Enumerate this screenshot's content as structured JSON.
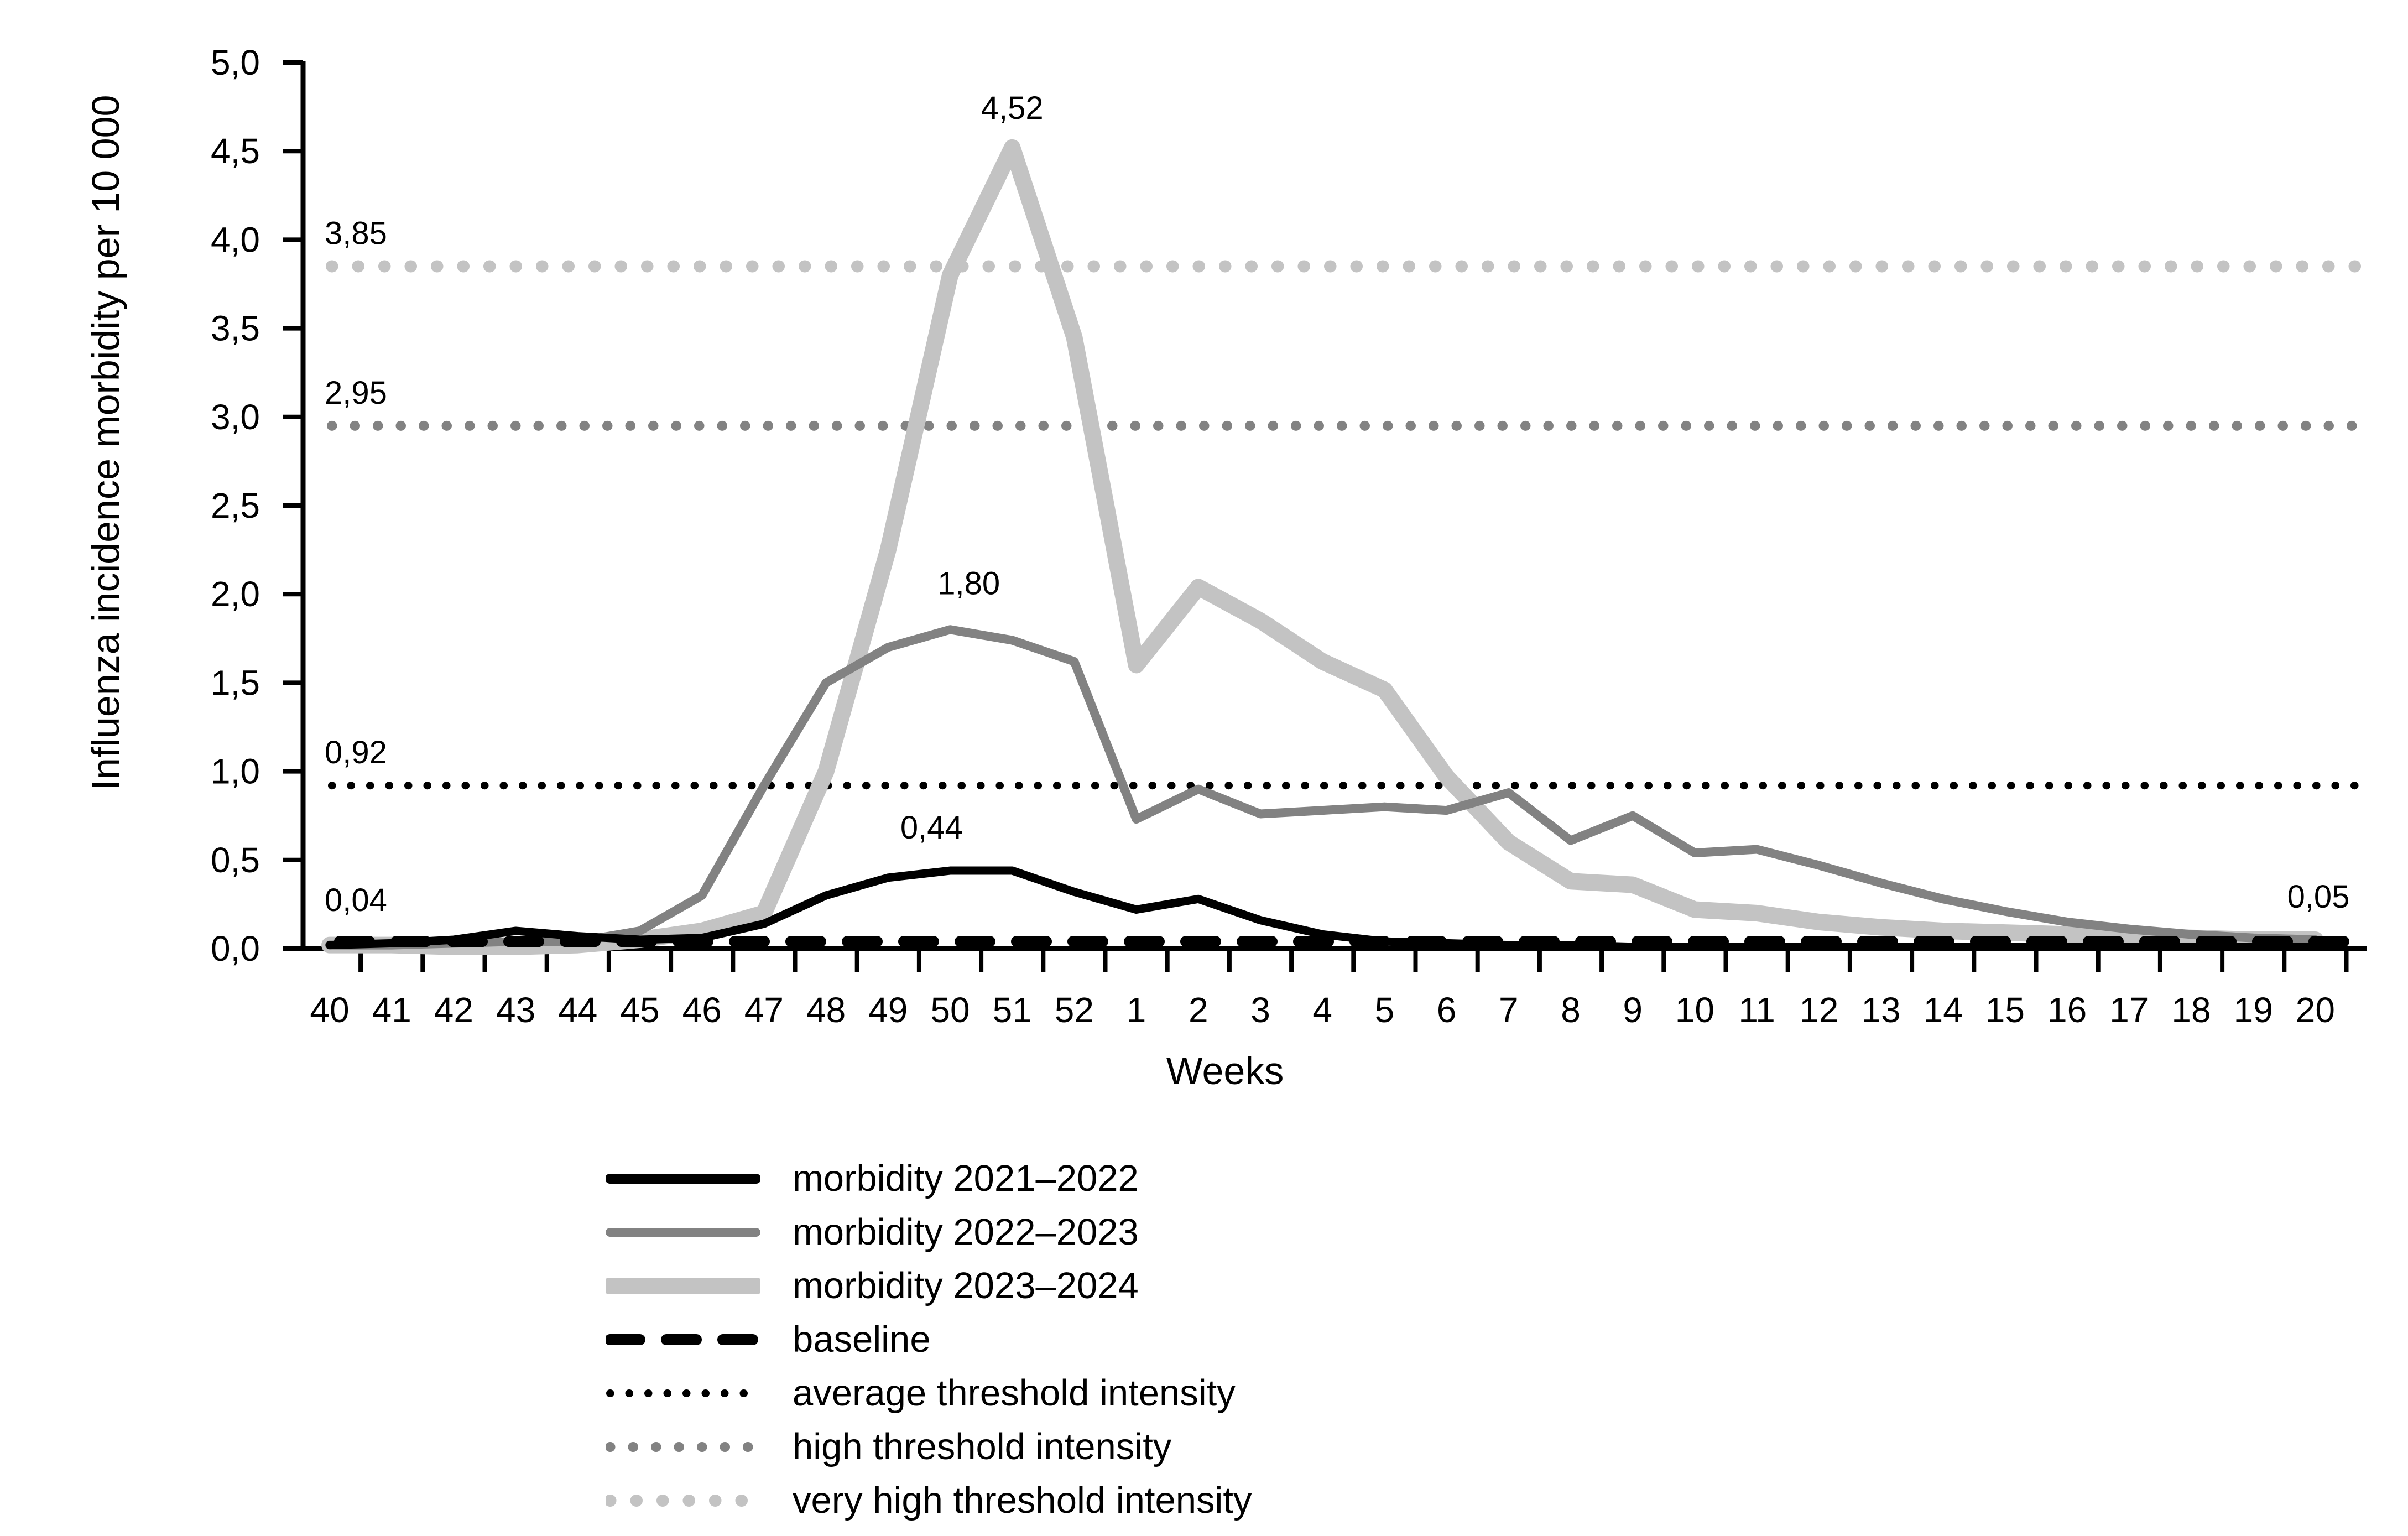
{
  "chart_data": {
    "type": "line",
    "xlabel": "Weeks",
    "ylabel": "Influenza incidence morbidity per 10 000",
    "ylim": [
      0,
      5
    ],
    "grid": false,
    "x_categories": [
      "40",
      "41",
      "42",
      "43",
      "44",
      "45",
      "46",
      "47",
      "48",
      "49",
      "50",
      "51",
      "52",
      "1",
      "2",
      "3",
      "4",
      "5",
      "6",
      "7",
      "8",
      "9",
      "10",
      "11",
      "12",
      "13",
      "14",
      "15",
      "16",
      "17",
      "18",
      "19",
      "20"
    ],
    "y_ticks": [
      {
        "value": 5.0,
        "label": "5,0"
      },
      {
        "value": 4.5,
        "label": "4,5"
      },
      {
        "value": 4.0,
        "label": "4,0"
      },
      {
        "value": 3.5,
        "label": "3,5"
      },
      {
        "value": 3.0,
        "label": "3,0"
      },
      {
        "value": 2.5,
        "label": "2,5"
      },
      {
        "value": 2.0,
        "label": "2,0"
      },
      {
        "value": 1.5,
        "label": "1,5"
      },
      {
        "value": 1.0,
        "label": "1,0"
      },
      {
        "value": 0.5,
        "label": "0,5"
      },
      {
        "value": 0.0,
        "label": "0,0"
      }
    ],
    "series": [
      {
        "name": "morbidity 2023–2024",
        "color": "#c3c3c3",
        "width": 30,
        "values": [
          0.02,
          0.02,
          0.01,
          0.01,
          0.02,
          0.05,
          0.1,
          0.2,
          1.0,
          2.25,
          3.8,
          4.52,
          3.45,
          1.6,
          2.04,
          1.85,
          1.62,
          1.46,
          0.97,
          0.6,
          0.38,
          0.36,
          0.22,
          0.2,
          0.15,
          0.12,
          0.1,
          0.09,
          0.08,
          0.07,
          0.06,
          0.05,
          0.05
        ],
        "peak_label": "4,52"
      },
      {
        "name": "morbidity 2022–2023",
        "color": "#828282",
        "width": 16,
        "values": [
          0.02,
          0.02,
          0.03,
          0.04,
          0.04,
          0.1,
          0.3,
          0.92,
          1.5,
          1.7,
          1.8,
          1.74,
          1.62,
          0.73,
          0.9,
          0.76,
          0.78,
          0.8,
          0.78,
          0.88,
          0.61,
          0.75,
          0.54,
          0.56,
          0.47,
          0.37,
          0.28,
          0.21,
          0.15,
          0.11,
          0.08,
          0.06,
          0.05
        ],
        "peak_label": "1,80"
      },
      {
        "name": "morbidity 2021–2022",
        "color": "#000000",
        "width": 15,
        "values": [
          0.02,
          0.03,
          0.05,
          0.1,
          0.07,
          0.05,
          0.06,
          0.14,
          0.3,
          0.4,
          0.44,
          0.44,
          0.32,
          0.22,
          0.28,
          0.16,
          0.08,
          0.04,
          0.03,
          0.02,
          0.02,
          0.01,
          0.01,
          0.01,
          0.01,
          0.01,
          0.01,
          0.01,
          0.01,
          0.01,
          0.01,
          0.01,
          0.01
        ],
        "peak_label": "0,44"
      }
    ],
    "baseline": {
      "name": "baseline",
      "value": 0.04,
      "color": "#000000",
      "width": 20,
      "dash": "54 48",
      "label": "0,04"
    },
    "thresholds": [
      {
        "name": "average threshold intensity",
        "value": 0.92,
        "color": "#000000",
        "width": 14,
        "dash": "0.5 34",
        "label": "0,92"
      },
      {
        "name": "high threshold intensity",
        "value": 2.95,
        "color": "#828282",
        "width": 18,
        "dash": "0.5 41",
        "label": "2,95"
      },
      {
        "name": "very high threshold intensity",
        "value": 3.85,
        "color": "#c3c3c3",
        "width": 22,
        "dash": "0.5 47",
        "label": "3,85"
      }
    ],
    "annotations": [
      {
        "label": "3,85",
        "x_week": -0.08,
        "value": 3.85,
        "dy": -40,
        "align": "start"
      },
      {
        "label": "2,95",
        "x_week": -0.08,
        "value": 2.95,
        "dy": -40,
        "align": "start"
      },
      {
        "label": "0,92",
        "x_week": -0.08,
        "value": 0.92,
        "dy": -40,
        "align": "start"
      },
      {
        "label": "0,04",
        "x_week": -0.08,
        "value": 0.04,
        "dy": -55,
        "align": "start"
      },
      {
        "label": "4,52",
        "x_week": 11.0,
        "value": 4.52,
        "dy": -52,
        "align": "middle"
      },
      {
        "label": "1,80",
        "x_week": 10.3,
        "value": 1.8,
        "dy": -64,
        "align": "middle"
      },
      {
        "label": "0,44",
        "x_week": 9.7,
        "value": 0.44,
        "dy": -58,
        "align": "middle"
      },
      {
        "label": "0,05",
        "x_week": 32.05,
        "value": 0.05,
        "dy": -58,
        "align": "middle"
      }
    ]
  },
  "legend": {
    "items": [
      {
        "label": "morbidity 2021–2022",
        "color": "#000000",
        "width": 18,
        "dash": ""
      },
      {
        "label": "morbidity 2022–2023",
        "color": "#828282",
        "width": 16,
        "dash": ""
      },
      {
        "label": "morbidity 2023–2024",
        "color": "#c3c3c3",
        "width": 30,
        "dash": ""
      },
      {
        "label": "baseline",
        "color": "#000000",
        "width": 20,
        "dash": "54 48"
      },
      {
        "label": "average threshold intensity",
        "color": "#000000",
        "width": 14,
        "dash": "0.5 34"
      },
      {
        "label": "high threshold intensity",
        "color": "#828282",
        "width": 18,
        "dash": "0.5 41"
      },
      {
        "label": "very high threshold intensity",
        "color": "#c3c3c3",
        "width": 22,
        "dash": "0.5 47"
      }
    ]
  }
}
